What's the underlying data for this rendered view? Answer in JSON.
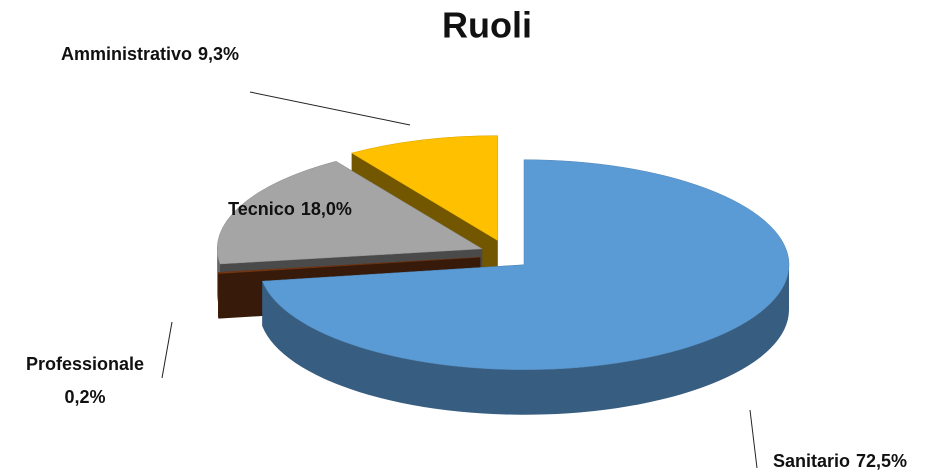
{
  "chart_data": {
    "type": "pie",
    "title": "Ruoli",
    "categories": [
      "Sanitario",
      "Professionale",
      "Tecnico",
      "Amministrativo"
    ],
    "values": [
      72.5,
      0.2,
      18.0,
      9.3
    ],
    "value_labels": [
      "72,5%",
      "0,2%",
      "18,0%",
      "9,3%"
    ],
    "colors": [
      "#5b9bd5",
      "#7b3a14",
      "#a5a5a5",
      "#ffc000"
    ]
  }
}
